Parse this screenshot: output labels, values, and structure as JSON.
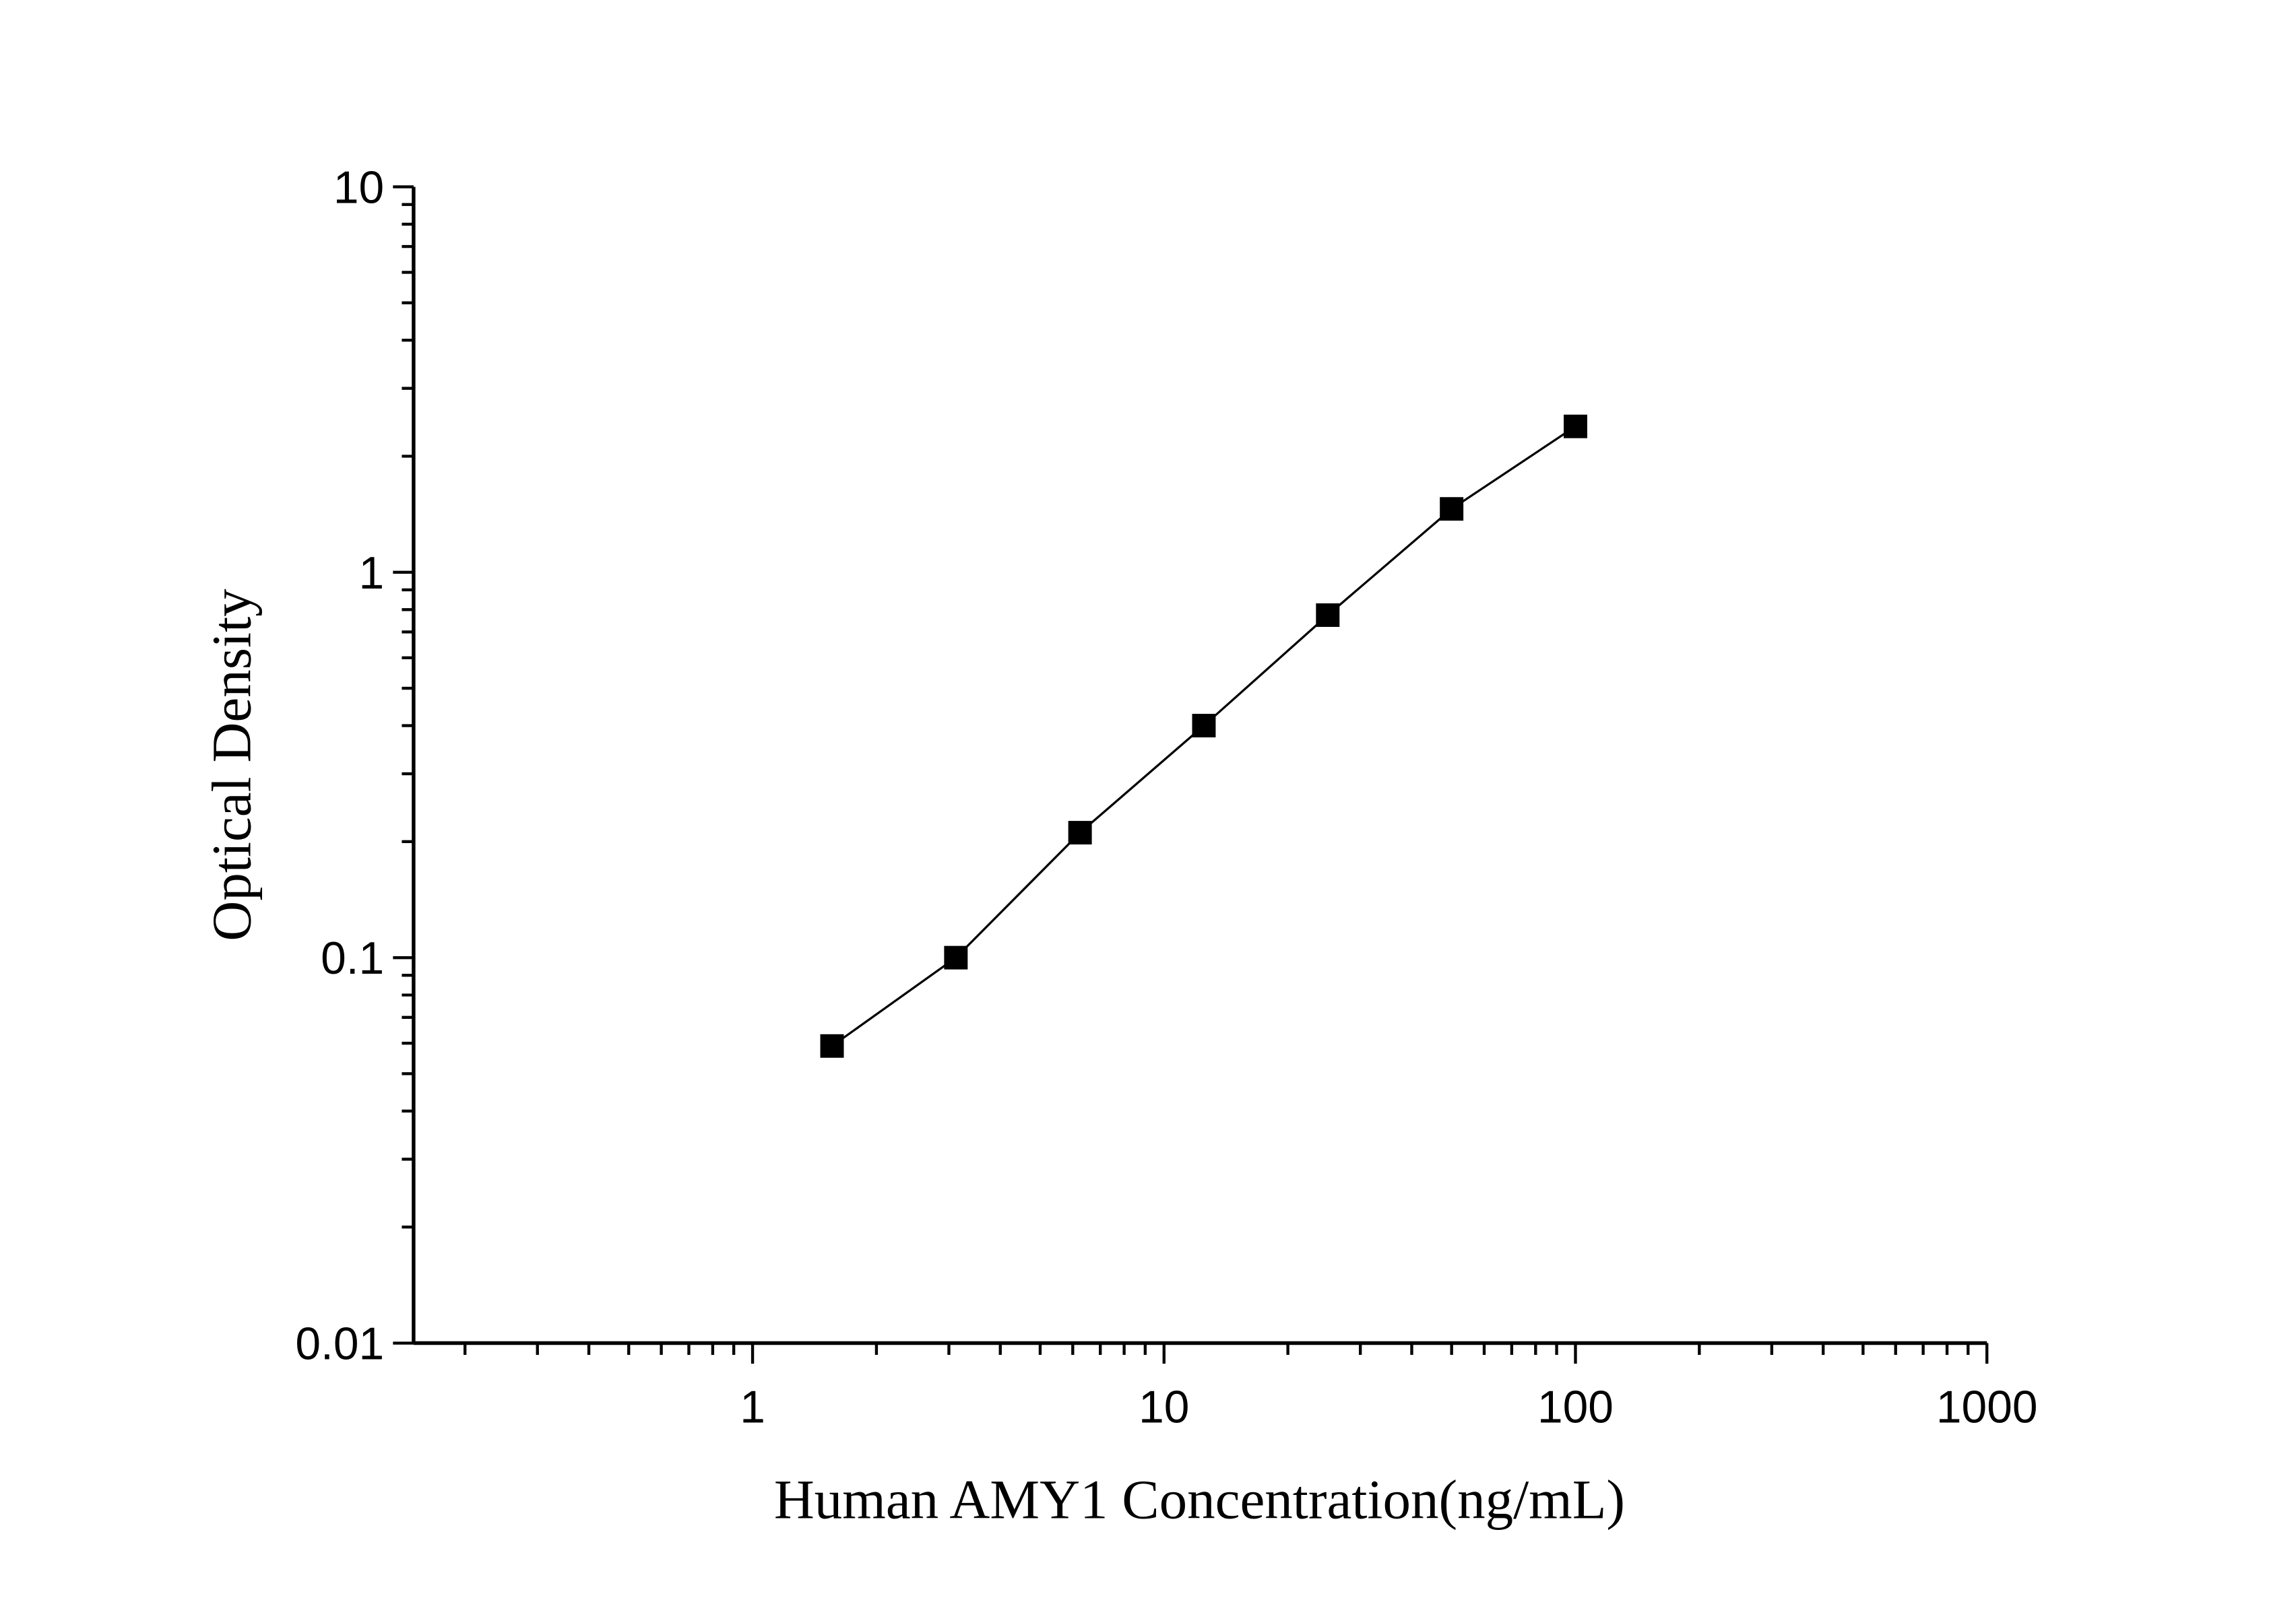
{
  "chart_data": {
    "type": "line",
    "title": "",
    "xlabel": "Human AMY1 Concentration(ng/mL)",
    "ylabel": "Optical Density",
    "x_scale": "log",
    "y_scale": "log",
    "xlim": [
      0.15,
      1000
    ],
    "ylim": [
      0.01,
      10
    ],
    "x_ticks": [
      "1",
      "10",
      "100",
      "1000"
    ],
    "y_ticks": [
      "0.01",
      "0.1",
      "1",
      "10"
    ],
    "grid": false,
    "marker": "square",
    "color": "#000000",
    "series": [
      {
        "x": [
          1.56,
          3.12,
          6.25,
          12.5,
          25,
          50,
          100
        ],
        "y": [
          0.059,
          0.1,
          0.211,
          0.4,
          0.774,
          1.46,
          2.39
        ]
      }
    ]
  }
}
